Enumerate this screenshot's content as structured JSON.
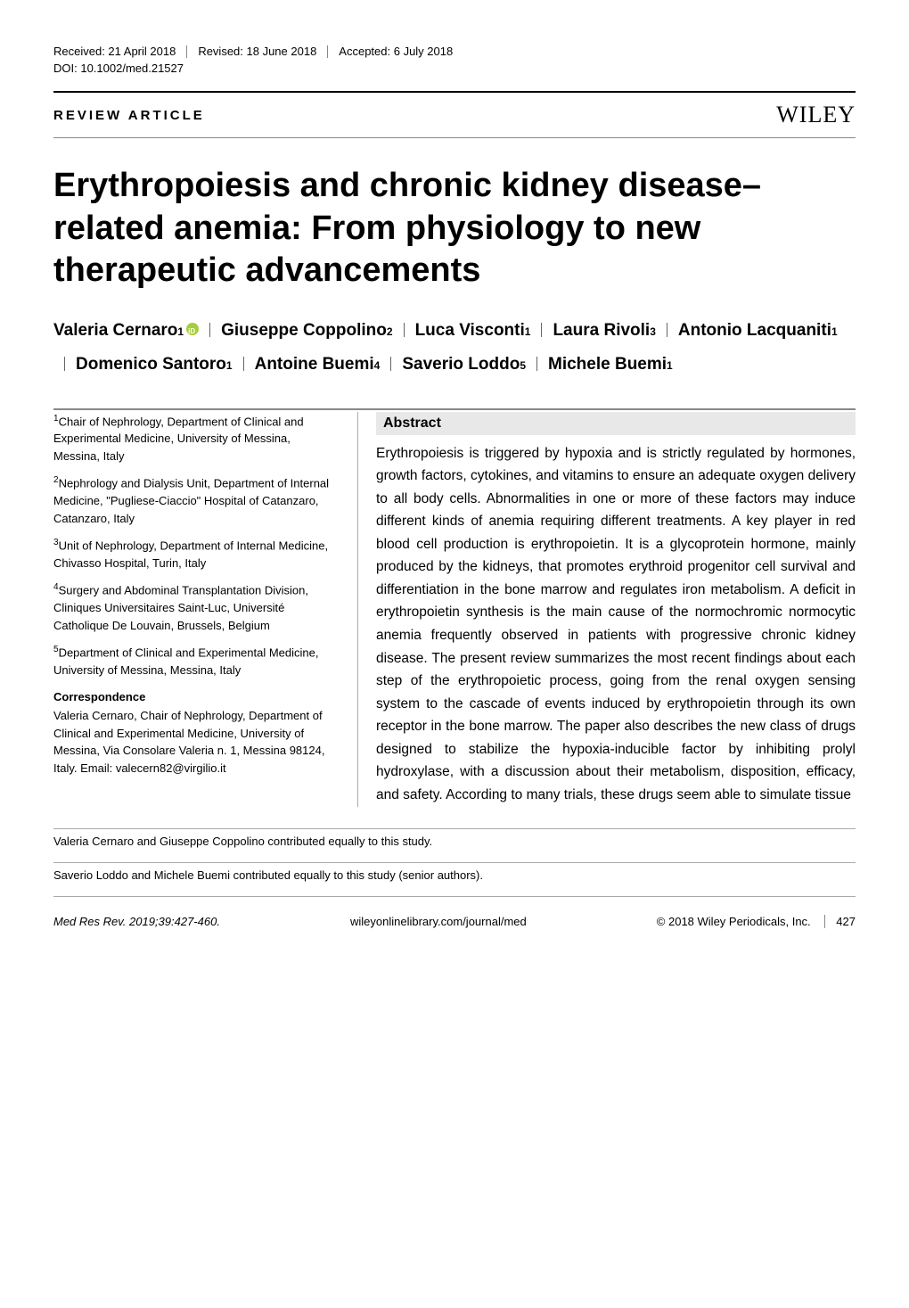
{
  "header": {
    "received_label": "Received: 21 April 2018",
    "revised_label": "Revised: 18 June 2018",
    "accepted_label": "Accepted: 6 July 2018",
    "doi": "DOI: 10.1002/med.21527",
    "article_type": "REVIEW ARTICLE",
    "publisher": "WILEY"
  },
  "title": "Erythropoiesis and chronic kidney disease–related anemia: From physiology to new therapeutic advancements",
  "authors": [
    {
      "name": "Valeria Cernaro",
      "aff": "1",
      "orcid": true
    },
    {
      "name": "Giuseppe Coppolino",
      "aff": "2",
      "orcid": false
    },
    {
      "name": "Luca Visconti",
      "aff": "1",
      "orcid": false
    },
    {
      "name": "Laura Rivoli",
      "aff": "3",
      "orcid": false
    },
    {
      "name": "Antonio Lacquaniti",
      "aff": "1",
      "orcid": false
    },
    {
      "name": "Domenico Santoro",
      "aff": "1",
      "orcid": false
    },
    {
      "name": "Antoine Buemi",
      "aff": "4",
      "orcid": false
    },
    {
      "name": "Saverio Loddo",
      "aff": "5",
      "orcid": false
    },
    {
      "name": "Michele Buemi",
      "aff": "1",
      "orcid": false
    }
  ],
  "affiliations": [
    {
      "num": "1",
      "text": "Chair of Nephrology, Department of Clinical and Experimental Medicine, University of Messina, Messina, Italy"
    },
    {
      "num": "2",
      "text": "Nephrology and Dialysis Unit, Department of Internal Medicine, \"Pugliese-Ciaccio\" Hospital of Catanzaro, Catanzaro, Italy"
    },
    {
      "num": "3",
      "text": "Unit of Nephrology, Department of Internal Medicine, Chivasso Hospital, Turin, Italy"
    },
    {
      "num": "4",
      "text": "Surgery and Abdominal Transplantation Division, Cliniques Universitaires Saint-Luc, Université Catholique De Louvain, Brussels, Belgium"
    },
    {
      "num": "5",
      "text": "Department of Clinical and Experimental Medicine, University of Messina, Messina, Italy"
    }
  ],
  "correspondence": {
    "heading": "Correspondence",
    "text": "Valeria Cernaro, Chair of Nephrology, Department of Clinical and Experimental Medicine, University of Messina, Via Consolare Valeria n. 1, Messina 98124, Italy. Email: valecern82@virgilio.it"
  },
  "abstract": {
    "heading": "Abstract",
    "body": "Erythropoiesis is triggered by hypoxia and is strictly regulated by hormones, growth factors, cytokines, and vitamins to ensure an adequate oxygen delivery to all body cells. Abnormalities in one or more of these factors may induce different kinds of anemia requiring different treatments. A key player in red blood cell production is erythropoietin. It is a glycoprotein hormone, mainly produced by the kidneys, that promotes erythroid progenitor cell survival and differentiation in the bone marrow and regulates iron metabolism. A deficit in erythropoietin synthesis is the main cause of the normochromic normocytic anemia frequently observed in patients with progressive chronic kidney disease. The present review summarizes the most recent findings about each step of the erythropoietic process, going from the renal oxygen sensing system to the cascade of events induced by erythropoietin through its own receptor in the bone marrow. The paper also describes the new class of drugs designed to stabilize the hypoxia-inducible factor by inhibiting prolyl hydroxylase, with a discussion about their metabolism, disposition, efficacy, and safety. According to many trials, these drugs seem able to simulate tissue"
  },
  "contrib_notes": [
    "Valeria Cernaro and Giuseppe Coppolino contributed equally to this study.",
    "Saverio Loddo and Michele Buemi contributed equally to this study (senior authors)."
  ],
  "footer": {
    "journal": "Med Res Rev. 2019;39:427-460.",
    "url": "wileyonlinelibrary.com/journal/med",
    "copyright": "© 2018 Wiley Periodicals, Inc.",
    "page": "427"
  }
}
